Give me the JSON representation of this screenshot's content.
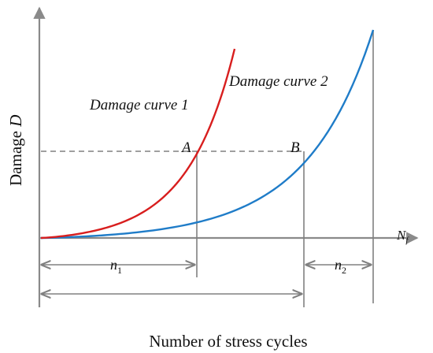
{
  "axes": {
    "y_label_main": "Damage",
    "y_label_symbol": "D",
    "x_label": "Number of stress cycles",
    "x_axis_end_label": "N",
    "x_axis_end_subscript": "f"
  },
  "curves": {
    "curve1_label": "Damage curve 1",
    "curve2_label": "Damage curve 2",
    "curve1_color": "#d81e1e",
    "curve2_color": "#1f7cc8"
  },
  "points": {
    "a_label": "A",
    "b_label": "B"
  },
  "dimensions": {
    "n1_label": "n",
    "n1_subscript": "1",
    "n2_label": "n",
    "n2_subscript": "2"
  },
  "colors": {
    "axis": "#8a8a8a",
    "guide": "#808080",
    "text": "#111111"
  }
}
